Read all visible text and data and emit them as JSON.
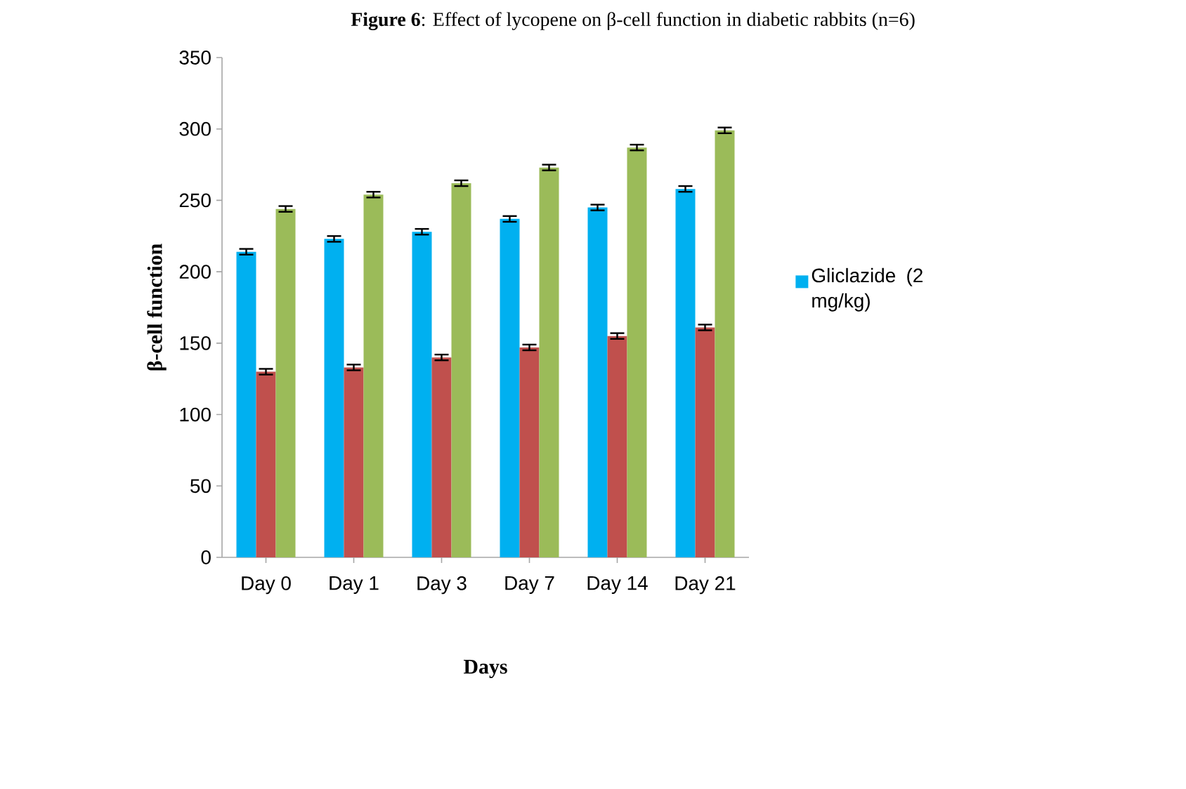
{
  "chart_data": {
    "type": "bar",
    "title": "**Figure 6**: Effect of lycopene on β-cell function in diabetic rabbits (n=6)",
    "xlabel": "Days",
    "ylabel": "β-cell function",
    "categories": [
      "Day 0",
      "Day 1",
      "Day 3",
      "Day 7",
      "Day 14",
      "Day 21"
    ],
    "series": [
      {
        "name": "Gliclazide (2 mg/kg)",
        "color": "#00b0f0",
        "values": [
          214,
          223,
          228,
          237,
          245,
          258
        ],
        "errors": [
          2,
          2,
          2,
          2,
          2,
          2
        ]
      },
      {
        "color": "#c0504d",
        "values": [
          130,
          133,
          140,
          147,
          155,
          161
        ],
        "errors": [
          2,
          2,
          2,
          2,
          2,
          2
        ]
      },
      {
        "color": "#9bbb59",
        "values": [
          244,
          254,
          262,
          273,
          287,
          299
        ],
        "errors": [
          2,
          2,
          2,
          2,
          2,
          2
        ]
      }
    ],
    "ylim": [
      0,
      350
    ],
    "yticks": [
      0,
      50,
      100,
      150,
      200,
      250,
      300,
      350
    ],
    "legend": "right"
  }
}
